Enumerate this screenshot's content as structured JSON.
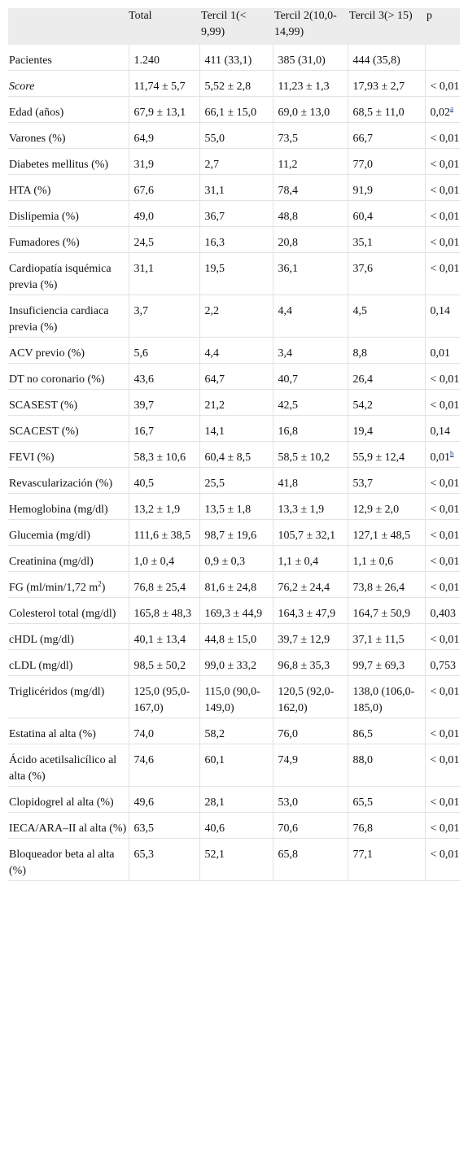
{
  "headers": [
    "",
    "Total",
    "Tercil 1(< 9,99)",
    "Tercil 2(10,0-14,99)",
    "Tercil 3(> 15)",
    "p"
  ],
  "rows": [
    {
      "label": "Pacientes",
      "total": "1.240",
      "t1": "411 (33,1)",
      "t2": "385 (31,0)",
      "t3": "444 (35,8)",
      "p": ""
    },
    {
      "label": "Score",
      "italic": true,
      "total": "11,74 ± 5,7",
      "t1": "5,52 ± 2,8",
      "t2": "11,23 ± 1,3",
      "t3": "17,93 ± 2,7",
      "p": "< 0,01"
    },
    {
      "label": "Edad (años)",
      "total": "67,9 ± 13,1",
      "t1": "66,1 ± 15,0",
      "t2": "69,0 ± 13,0",
      "t3": "68,5 ± 11,0",
      "p": "0,02",
      "p_sup": "a"
    },
    {
      "label": "Varones (%)",
      "total": "64,9",
      "t1": "55,0",
      "t2": "73,5",
      "t3": "66,7",
      "p": "< 0,01"
    },
    {
      "label": "Diabetes mellitus (%)",
      "total": "31,9",
      "t1": "2,7",
      "t2": "11,2",
      "t3": "77,0",
      "p": "< 0,01"
    },
    {
      "label": "HTA (%)",
      "total": "67,6",
      "t1": "31,1",
      "t2": "78,4",
      "t3": "91,9",
      "p": "< 0,01"
    },
    {
      "label": "Dislipemia (%)",
      "total": "49,0",
      "t1": "36,7",
      "t2": "48,8",
      "t3": "60,4",
      "p": "< 0,01"
    },
    {
      "label": "Fumadores (%)",
      "total": "24,5",
      "t1": "16,3",
      "t2": "20,8",
      "t3": "35,1",
      "p": "< 0,01"
    },
    {
      "label": "Cardiopatía isquémica previa (%)",
      "total": "31,1",
      "t1": "19,5",
      "t2": "36,1",
      "t3": "37,6",
      "p": "< 0,01"
    },
    {
      "label": "Insuficiencia cardiaca previa (%)",
      "total": "3,7",
      "t1": "2,2",
      "t2": "4,4",
      "t3": "4,5",
      "p": "0,14"
    },
    {
      "label": "ACV previo (%)",
      "total": "5,6",
      "t1": "4,4",
      "t2": "3,4",
      "t3": "8,8",
      "p": "0,01"
    },
    {
      "label": "DT no coronario (%)",
      "total": "43,6",
      "t1": "64,7",
      "t2": "40,7",
      "t3": "26,4",
      "p": "< 0,01"
    },
    {
      "label": "SCASEST (%)",
      "total": "39,7",
      "t1": "21,2",
      "t2": "42,5",
      "t3": "54,2",
      "p": "< 0,01"
    },
    {
      "label": "SCACEST (%)",
      "total": "16,7",
      "t1": "14,1",
      "t2": "16,8",
      "t3": "19,4",
      "p": "0,14"
    },
    {
      "label": "FEVI (%)",
      "total": "58,3 ± 10,6",
      "t1": "60,4 ± 8,5",
      "t2": "58,5 ± 10,2",
      "t3": "55,9 ± 12,4",
      "p": "0,01",
      "p_sup": "b"
    },
    {
      "label": "Revascularización (%)",
      "total": "40,5",
      "t1": "25,5",
      "t2": "41,8",
      "t3": "53,7",
      "p": "< 0,01"
    },
    {
      "label": "Hemoglobina (mg/dl)",
      "total": "13,2 ± 1,9",
      "t1": "13,5 ± 1,8",
      "t2": "13,3 ± 1,9",
      "t3": "12,9 ± 2,0",
      "p": "< 0,01"
    },
    {
      "label": "Glucemia (mg/dl)",
      "total": "111,6 ± 38,5",
      "t1": "98,7 ± 19,6",
      "t2": "105,7 ± 32,1",
      "t3": "127,1 ± 48,5",
      "p": "< 0,01"
    },
    {
      "label": "Creatinina (mg/dl)",
      "total": "1,0 ± 0,4",
      "t1": "0,9 ± 0,3",
      "t2": "1,1 ± 0,4",
      "t3": "1,1 ± 0,6",
      "p": "< 0,01"
    },
    {
      "label": "FG (ml/min/1,72 m",
      "label_sup": "2",
      "label_tail": ")",
      "total": "76,8 ± 25,4",
      "t1": "81,6 ± 24,8",
      "t2": "76,2 ± 24,4",
      "t3": "73,8 ± 26,4",
      "p": "< 0,01"
    },
    {
      "label": "Colesterol total (mg/dl)",
      "total": "165,8 ± 48,3",
      "t1": "169,3 ± 44,9",
      "t2": "164,3 ± 47,9",
      "t3": "164,7 ± 50,9",
      "p": "0,403"
    },
    {
      "label": "cHDL (mg/dl)",
      "total": "40,1 ± 13,4",
      "t1": "44,8 ± 15,0",
      "t2": "39,7 ± 12,9",
      "t3": "37,1 ± 11,5",
      "p": "< 0,01"
    },
    {
      "label": "cLDL (mg/dl)",
      "total": "98,5 ± 50,2",
      "t1": "99,0 ± 33,2",
      "t2": "96,8 ± 35,3",
      "t3": "99,7 ± 69,3",
      "p": "0,753"
    },
    {
      "label": "Triglicéridos (mg/dl)",
      "total": "125,0 (95,0-167,0)",
      "t1": "115,0 (90,0-149,0)",
      "t2": "120,5 (92,0-162,0)",
      "t3": "138,0 (106,0-185,0)",
      "p": "< 0,01"
    },
    {
      "label": "Estatina al alta (%)",
      "total": "74,0",
      "t1": "58,2",
      "t2": "76,0",
      "t3": "86,5",
      "p": "< 0,01"
    },
    {
      "label": "Ácido acetilsalicílico al alta (%)",
      "total": "74,6",
      "t1": "60,1",
      "t2": "74,9",
      "t3": "88,0",
      "p": "< 0,01"
    },
    {
      "label": "Clopidogrel al alta (%)",
      "total": "49,6",
      "t1": "28,1",
      "t2": "53,0",
      "t3": "65,5",
      "p": "< 0,01"
    },
    {
      "label": "IECA/ARA–II al alta (%)",
      "total": "63,5",
      "t1": "40,6",
      "t2": "70,6",
      "t3": "76,8",
      "p": "< 0,01"
    },
    {
      "label": "Bloqueador beta al alta (%)",
      "total": "65,3",
      "t1": "52,1",
      "t2": "65,8",
      "t3": "77,1",
      "p": "< 0,01"
    }
  ]
}
